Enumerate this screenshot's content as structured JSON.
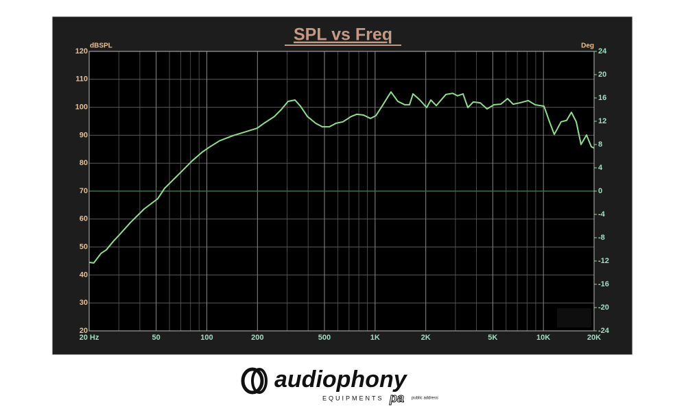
{
  "chart_data": {
    "type": "line",
    "title": "SPL vs Freq",
    "y_label": "dBSPL",
    "y2_label": "Deg",
    "xscale": "log",
    "x": [
      20,
      21.3,
      23.5,
      25.3,
      27.8,
      30.5,
      35.1,
      42.4,
      51.1,
      56.1,
      67.8,
      81.7,
      94.1,
      103.4,
      119,
      143.6,
      165.3,
      199,
      219,
      252,
      277,
      304,
      334,
      360,
      396,
      443,
      486,
      534,
      587,
      644,
      721,
      778,
      854,
      938,
      1011,
      1100,
      1242,
      1365,
      1500,
      1601,
      1679,
      1845,
      2025,
      2143,
      2310,
      2635,
      2892,
      3090,
      3330,
      3557,
      3834,
      4211,
      4623,
      5081,
      5580,
      6126,
      6608,
      7260,
      8122,
      8924,
      10077,
      10766,
      11600,
      12740,
      13740,
      14670,
      15670,
      16730,
      18040,
      19250,
      20000
    ],
    "series": [
      {
        "color": "#8ee08a",
        "values": [
          44.5,
          44.3,
          47.7,
          49,
          52,
          54.6,
          58.7,
          63.6,
          67.3,
          71,
          75.9,
          80.8,
          84,
          85.7,
          88,
          89.9,
          91,
          92.5,
          94.3,
          96.7,
          99.2,
          102.1,
          102.6,
          100.4,
          96.7,
          94.3,
          93,
          93,
          94.3,
          94.8,
          96.7,
          97.5,
          97.2,
          96,
          97,
          100.4,
          105.5,
          102.1,
          100.9,
          100.9,
          104.8,
          102.6,
          99.9,
          102.6,
          100.6,
          104.6,
          105,
          104.1,
          104.8,
          99.9,
          101.9,
          101.6,
          99.4,
          100.9,
          101.1,
          103.1,
          101.1,
          101.6,
          102.4,
          100.9,
          100.4,
          95.5,
          90.3,
          94.8,
          95.3,
          98.2,
          94.8,
          86.7,
          90.1,
          85.9,
          85.4
        ]
      }
    ],
    "xlim": [
      20,
      20000
    ],
    "xticks": [
      {
        "value": 20,
        "label": "20  Hz"
      },
      50,
      100,
      200,
      500,
      {
        "value": 1000,
        "label": "1K"
      },
      {
        "value": 2000,
        "label": "2K"
      },
      {
        "value": 5000,
        "label": "5K"
      },
      {
        "value": 10000,
        "label": "10K"
      },
      {
        "value": 20000,
        "label": "20K"
      }
    ],
    "x_minor_grid": [
      30,
      40,
      60,
      70,
      80,
      90,
      300,
      400,
      600,
      700,
      800,
      900,
      3000,
      4000,
      6000,
      7000,
      8000,
      9000
    ],
    "ylim": [
      20,
      120
    ],
    "yticks": [
      20,
      30,
      40,
      50,
      60,
      70,
      80,
      90,
      100,
      110,
      120
    ],
    "y2lim": [
      -24,
      24
    ],
    "y2ticks": [
      -24,
      -20,
      -16,
      -12,
      -8,
      -4,
      0,
      4,
      8,
      12,
      16,
      20,
      24
    ],
    "y2_reference_line": 0,
    "grid": true
  },
  "logo": {
    "brand": "audiophony",
    "tagline": "EQUIPMENTS",
    "mark": "pa",
    "sub": "public address"
  }
}
